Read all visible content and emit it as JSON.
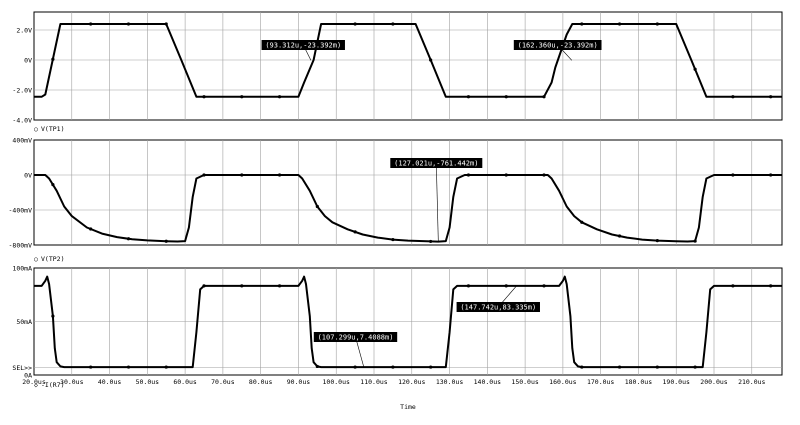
{
  "chart_data": [
    {
      "type": "line",
      "trace_label": "V(TP1)",
      "marker_symbol": "○",
      "y_ticks": [
        "2.0V",
        "0V",
        "-2.0V",
        "-4.0V"
      ],
      "y_tick_values": [
        2,
        0,
        -2,
        -4
      ],
      "ylim": [
        -4,
        3.2
      ],
      "series": [
        {
          "name": "V(TP1)",
          "x": [
            20,
            22,
            23,
            27,
            55,
            59,
            63,
            90,
            91.5,
            94,
            96,
            121,
            125,
            129,
            155,
            157,
            158,
            161,
            162.5,
            190,
            194,
            198,
            218
          ],
          "y": [
            -2.45,
            -2.45,
            -2.3,
            2.4,
            2.4,
            0,
            -2.45,
            -2.45,
            -1.5,
            0,
            2.4,
            2.4,
            0,
            -2.45,
            -2.45,
            -1.5,
            -0.5,
            1.7,
            2.4,
            2.4,
            0,
            -2.45,
            -2.45
          ]
        }
      ],
      "annotations": [
        {
          "text": "(93.312u,-23.392m)",
          "x": 93.312,
          "y": -0.023
        },
        {
          "text": "(162.360u,-23.392m)",
          "x": 162.36,
          "y": -0.023
        }
      ]
    },
    {
      "type": "line",
      "trace_label": "V(TP2)",
      "marker_symbol": "○",
      "y_ticks": [
        "400mV",
        "0V",
        "-400mV",
        "-800mV"
      ],
      "y_tick_values": [
        400,
        0,
        -400,
        -800
      ],
      "ylim": [
        -800,
        400
      ],
      "series": [
        {
          "name": "V(TP2)",
          "x": [
            20,
            23,
            24,
            26,
            28,
            30,
            34,
            38,
            42,
            46,
            50,
            55,
            58,
            60,
            61,
            62,
            63,
            65,
            90,
            91,
            93,
            95,
            97,
            99,
            103,
            107,
            111,
            115,
            119,
            124,
            127,
            129,
            130,
            131,
            132,
            134,
            156,
            157,
            159,
            161,
            163,
            165,
            169,
            173,
            177,
            181,
            185,
            190,
            193,
            195,
            196,
            197,
            198,
            200,
            218
          ],
          "y": [
            0,
            0,
            -40,
            -180,
            -360,
            -470,
            -600,
            -670,
            -710,
            -735,
            -748,
            -757,
            -760,
            -755,
            -600,
            -250,
            -40,
            0,
            0,
            -40,
            -180,
            -360,
            -470,
            -540,
            -620,
            -680,
            -715,
            -738,
            -750,
            -758,
            -761,
            -755,
            -600,
            -250,
            -40,
            0,
            0,
            -40,
            -180,
            -360,
            -470,
            -540,
            -620,
            -680,
            -715,
            -738,
            -750,
            -758,
            -760,
            -755,
            -600,
            -250,
            -40,
            0,
            0
          ]
        }
      ],
      "annotations": [
        {
          "text": "(127.021u,-761.442m)",
          "x": 127.021,
          "y": -761.442
        }
      ]
    },
    {
      "type": "line",
      "trace_label": "-I(R7)",
      "marker_symbol": "◇",
      "y_ticks": [
        "100mA",
        "50mA",
        "SEL>>",
        "0A"
      ],
      "y_tick_values": [
        100,
        50,
        7,
        0
      ],
      "ylim": [
        0,
        100
      ],
      "series": [
        {
          "name": "-I(R7)",
          "x": [
            20,
            22,
            23,
            23.5,
            24,
            25,
            25.5,
            26,
            27,
            28,
            60,
            62,
            63,
            64,
            65,
            90,
            91,
            91.5,
            92,
            93,
            93.5,
            94,
            95,
            96,
            127,
            129,
            130,
            131,
            132,
            159,
            160,
            160.5,
            161,
            162,
            162.5,
            163,
            164,
            165,
            195,
            197,
            198,
            199,
            200,
            218
          ],
          "y": [
            83.3,
            83.3,
            88,
            92,
            85,
            55,
            25,
            12,
            8,
            7.4,
            7.4,
            7.4,
            40,
            80,
            83.3,
            83.3,
            88,
            92,
            85,
            55,
            25,
            12,
            8,
            7.4,
            7.4,
            7.4,
            40,
            80,
            83.3,
            83.3,
            88,
            92,
            85,
            55,
            25,
            12,
            8,
            7.4,
            7.4,
            7.4,
            40,
            80,
            83.3,
            83.3
          ]
        }
      ],
      "annotations": [
        {
          "text": "(107.299u,7.4088m)",
          "x": 107.299,
          "y": 7.4088
        },
        {
          "text": "(147.742u,83.335m)",
          "x": 147.742,
          "y": 83.335
        }
      ]
    }
  ],
  "x_axis": {
    "xlabel": "Time",
    "xlim": [
      20,
      218
    ],
    "ticks": [
      "20.0us",
      "30.0us",
      "40.0us",
      "50.0us",
      "60.0us",
      "70.0us",
      "80.0us",
      "90.0us",
      "100.0us",
      "110.0us",
      "120.0us",
      "130.0us",
      "140.0us",
      "150.0us",
      "160.0us",
      "170.0us",
      "180.0us",
      "190.0us",
      "200.0us",
      "210.0us"
    ],
    "tick_values": [
      20,
      30,
      40,
      50,
      60,
      70,
      80,
      90,
      100,
      110,
      120,
      130,
      140,
      150,
      160,
      170,
      180,
      190,
      200,
      210
    ]
  },
  "grid": true,
  "colors": {
    "background": "#ffffff",
    "trace": "#000000",
    "grid": "#a0a0a0",
    "annotation_bg": "#000000",
    "annotation_text": "#ffffff"
  }
}
